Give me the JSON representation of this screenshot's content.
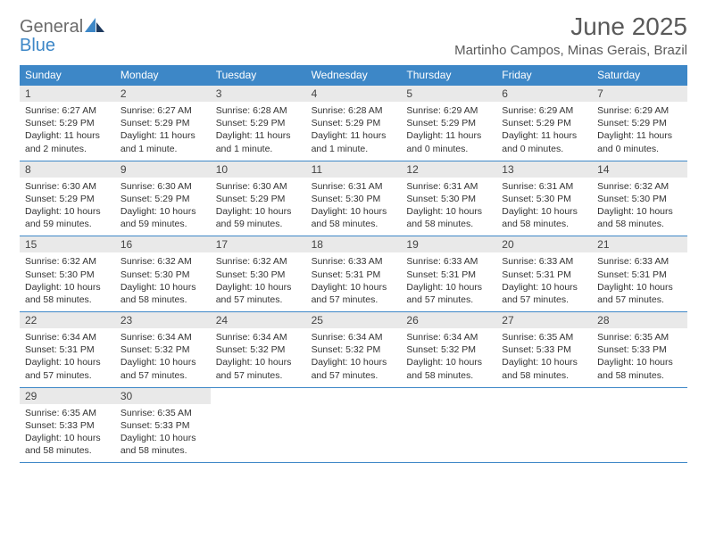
{
  "logo": {
    "general": "General",
    "blue": "Blue"
  },
  "header": {
    "month_title": "June 2025",
    "location": "Martinho Campos, Minas Gerais, Brazil"
  },
  "colors": {
    "accent": "#3d87c7",
    "header_text": "#ffffff",
    "daybar_bg": "#e9e9e9",
    "body_text": "#333333",
    "title_text": "#5a5a5a",
    "page_bg": "#ffffff"
  },
  "weekdays": [
    "Sunday",
    "Monday",
    "Tuesday",
    "Wednesday",
    "Thursday",
    "Friday",
    "Saturday"
  ],
  "days": [
    {
      "n": 1,
      "sunrise": "6:27 AM",
      "sunset": "5:29 PM",
      "daylight": "11 hours and 2 minutes."
    },
    {
      "n": 2,
      "sunrise": "6:27 AM",
      "sunset": "5:29 PM",
      "daylight": "11 hours and 1 minute."
    },
    {
      "n": 3,
      "sunrise": "6:28 AM",
      "sunset": "5:29 PM",
      "daylight": "11 hours and 1 minute."
    },
    {
      "n": 4,
      "sunrise": "6:28 AM",
      "sunset": "5:29 PM",
      "daylight": "11 hours and 1 minute."
    },
    {
      "n": 5,
      "sunrise": "6:29 AM",
      "sunset": "5:29 PM",
      "daylight": "11 hours and 0 minutes."
    },
    {
      "n": 6,
      "sunrise": "6:29 AM",
      "sunset": "5:29 PM",
      "daylight": "11 hours and 0 minutes."
    },
    {
      "n": 7,
      "sunrise": "6:29 AM",
      "sunset": "5:29 PM",
      "daylight": "11 hours and 0 minutes."
    },
    {
      "n": 8,
      "sunrise": "6:30 AM",
      "sunset": "5:29 PM",
      "daylight": "10 hours and 59 minutes."
    },
    {
      "n": 9,
      "sunrise": "6:30 AM",
      "sunset": "5:29 PM",
      "daylight": "10 hours and 59 minutes."
    },
    {
      "n": 10,
      "sunrise": "6:30 AM",
      "sunset": "5:29 PM",
      "daylight": "10 hours and 59 minutes."
    },
    {
      "n": 11,
      "sunrise": "6:31 AM",
      "sunset": "5:30 PM",
      "daylight": "10 hours and 58 minutes."
    },
    {
      "n": 12,
      "sunrise": "6:31 AM",
      "sunset": "5:30 PM",
      "daylight": "10 hours and 58 minutes."
    },
    {
      "n": 13,
      "sunrise": "6:31 AM",
      "sunset": "5:30 PM",
      "daylight": "10 hours and 58 minutes."
    },
    {
      "n": 14,
      "sunrise": "6:32 AM",
      "sunset": "5:30 PM",
      "daylight": "10 hours and 58 minutes."
    },
    {
      "n": 15,
      "sunrise": "6:32 AM",
      "sunset": "5:30 PM",
      "daylight": "10 hours and 58 minutes."
    },
    {
      "n": 16,
      "sunrise": "6:32 AM",
      "sunset": "5:30 PM",
      "daylight": "10 hours and 58 minutes."
    },
    {
      "n": 17,
      "sunrise": "6:32 AM",
      "sunset": "5:30 PM",
      "daylight": "10 hours and 57 minutes."
    },
    {
      "n": 18,
      "sunrise": "6:33 AM",
      "sunset": "5:31 PM",
      "daylight": "10 hours and 57 minutes."
    },
    {
      "n": 19,
      "sunrise": "6:33 AM",
      "sunset": "5:31 PM",
      "daylight": "10 hours and 57 minutes."
    },
    {
      "n": 20,
      "sunrise": "6:33 AM",
      "sunset": "5:31 PM",
      "daylight": "10 hours and 57 minutes."
    },
    {
      "n": 21,
      "sunrise": "6:33 AM",
      "sunset": "5:31 PM",
      "daylight": "10 hours and 57 minutes."
    },
    {
      "n": 22,
      "sunrise": "6:34 AM",
      "sunset": "5:31 PM",
      "daylight": "10 hours and 57 minutes."
    },
    {
      "n": 23,
      "sunrise": "6:34 AM",
      "sunset": "5:32 PM",
      "daylight": "10 hours and 57 minutes."
    },
    {
      "n": 24,
      "sunrise": "6:34 AM",
      "sunset": "5:32 PM",
      "daylight": "10 hours and 57 minutes."
    },
    {
      "n": 25,
      "sunrise": "6:34 AM",
      "sunset": "5:32 PM",
      "daylight": "10 hours and 57 minutes."
    },
    {
      "n": 26,
      "sunrise": "6:34 AM",
      "sunset": "5:32 PM",
      "daylight": "10 hours and 58 minutes."
    },
    {
      "n": 27,
      "sunrise": "6:35 AM",
      "sunset": "5:33 PM",
      "daylight": "10 hours and 58 minutes."
    },
    {
      "n": 28,
      "sunrise": "6:35 AM",
      "sunset": "5:33 PM",
      "daylight": "10 hours and 58 minutes."
    },
    {
      "n": 29,
      "sunrise": "6:35 AM",
      "sunset": "5:33 PM",
      "daylight": "10 hours and 58 minutes."
    },
    {
      "n": 30,
      "sunrise": "6:35 AM",
      "sunset": "5:33 PM",
      "daylight": "10 hours and 58 minutes."
    }
  ],
  "labels": {
    "sunrise_prefix": "Sunrise: ",
    "sunset_prefix": "Sunset: ",
    "daylight_prefix": "Daylight: "
  },
  "layout": {
    "start_weekday": 0,
    "weeks": 5,
    "cols": 7
  }
}
